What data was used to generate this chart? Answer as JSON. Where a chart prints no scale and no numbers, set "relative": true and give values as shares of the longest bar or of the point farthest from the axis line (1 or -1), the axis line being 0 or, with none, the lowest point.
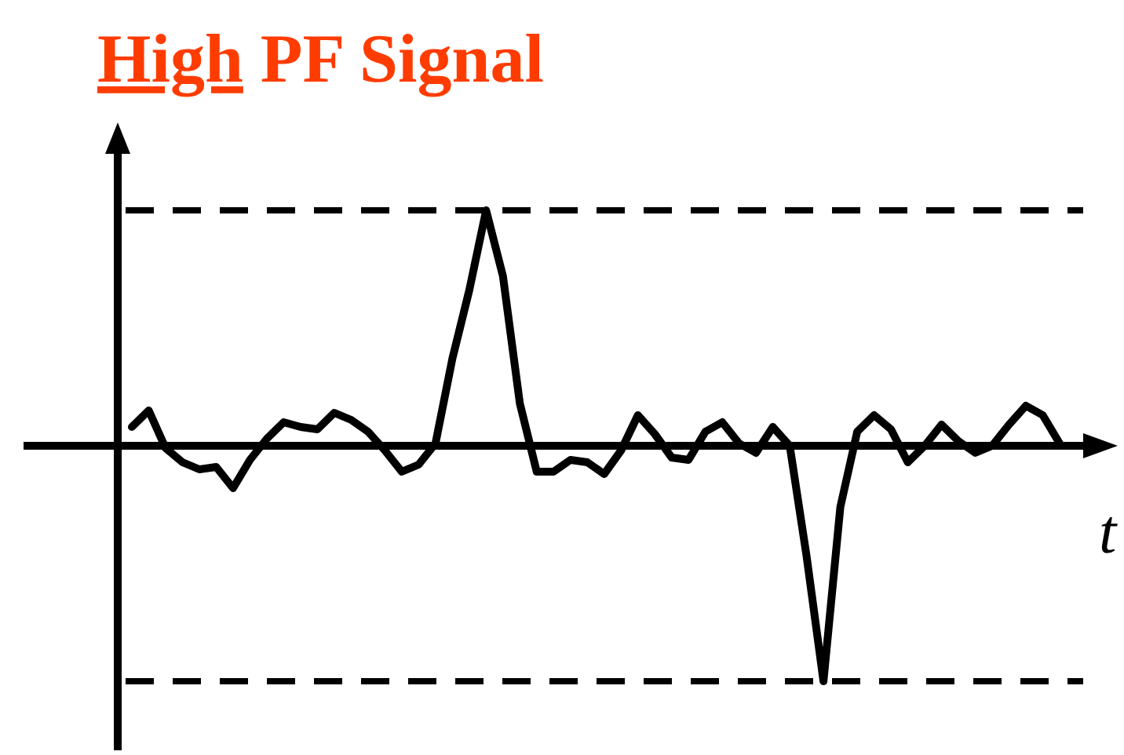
{
  "chart_data": {
    "type": "line",
    "title": "High PF Signal",
    "xlabel": "t",
    "relative": true,
    "categories": [
      null,
      null,
      null,
      null,
      null,
      null,
      null,
      null,
      null,
      null,
      null,
      null,
      null,
      null,
      null,
      null,
      null,
      null,
      null,
      null,
      null,
      null,
      null,
      null,
      null,
      null,
      null,
      null,
      null,
      null,
      null,
      null,
      null,
      null,
      null,
      null,
      null,
      null,
      null,
      null,
      null,
      null,
      null,
      null,
      null,
      null,
      null,
      null,
      null,
      null,
      null,
      null,
      null,
      null,
      null,
      null
    ],
    "series": [
      {
        "color": "#000000",
        "values": [
          0.08,
          0.15,
          -0.01,
          -0.07,
          -0.1,
          -0.09,
          -0.18,
          -0.06,
          0.03,
          0.1,
          0.08,
          0.07,
          0.14,
          0.11,
          0.06,
          -0.02,
          -0.11,
          -0.08,
          0.01,
          0.37,
          0.66,
          1,
          0.72,
          0.18,
          -0.11,
          -0.11,
          -0.06,
          -0.07,
          -0.12,
          -0.02,
          0.13,
          0.05,
          -0.05,
          -0.06,
          0.06,
          0.1,
          0.01,
          -0.03,
          0.08,
          0,
          -0.47,
          -1,
          -0.26,
          0.06,
          0.13,
          0.07,
          -0.07,
          0,
          0.09,
          0.02,
          -0.03,
          0,
          0.09,
          0.17,
          0.13,
          0.01
        ]
      }
    ],
    "ref_lines": [
      {
        "axis": "y",
        "value": 1,
        "color": "#000000",
        "line_style": "dashed"
      },
      {
        "axis": "y",
        "value": -1,
        "color": "#000000",
        "line_style": "dashed"
      }
    ]
  }
}
